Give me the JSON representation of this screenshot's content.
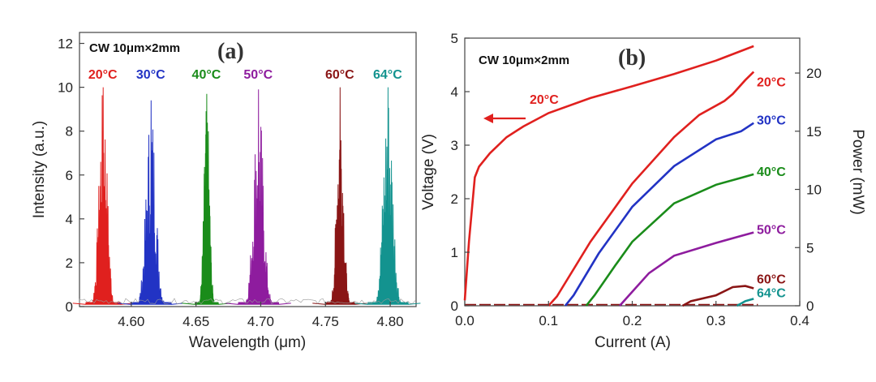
{
  "chart_data": [
    {
      "panel": "(a)",
      "type": "line",
      "annotation": "CW  10μm×2mm",
      "xlabel": "Wavelength (μm)",
      "ylabel": "Intensity (a.u.)",
      "xlim": [
        4.56,
        4.82
      ],
      "ylim": [
        0,
        12.5
      ],
      "xticks": [
        "4.60",
        "4.65",
        "4.70",
        "4.75",
        "4.80"
      ],
      "yticks": [
        "0",
        "2",
        "4",
        "6",
        "8",
        "10",
        "12"
      ],
      "series": [
        {
          "name": "20°C",
          "color": "#e0201e",
          "center": 4.578,
          "peak": 10.0,
          "width": 0.006
        },
        {
          "name": "30°C",
          "color": "#2233c4",
          "center": 4.615,
          "peak": 9.4,
          "width": 0.007
        },
        {
          "name": "40°C",
          "color": "#1a8c1a",
          "center": 4.658,
          "peak": 9.7,
          "width": 0.004
        },
        {
          "name": "50°C",
          "color": "#8e1c9e",
          "center": 4.698,
          "peak": 9.9,
          "width": 0.007
        },
        {
          "name": "60°C",
          "color": "#8a1515",
          "center": 4.761,
          "peak": 10.0,
          "width": 0.005
        },
        {
          "name": "64°C",
          "color": "#13938f",
          "center": 4.798,
          "peak": 10.0,
          "width": 0.007
        }
      ]
    },
    {
      "panel": "(b)",
      "type": "line",
      "annotation": "CW  10μm×2mm",
      "xlabel": "Current (A)",
      "ylabel": "Voltage (V)",
      "y2label": "Power (mW)",
      "xlim": [
        0,
        0.4
      ],
      "ylim": [
        0,
        5
      ],
      "y2lim": [
        0,
        23
      ],
      "xticks": [
        "0.0",
        "0.1",
        "0.2",
        "0.3",
        "0.4"
      ],
      "yticks": [
        "0",
        "1",
        "2",
        "3",
        "4",
        "5"
      ],
      "y2ticks": [
        "0",
        "5",
        "10",
        "15",
        "20"
      ],
      "voltage_series": {
        "name": "20°C",
        "color": "#e0201e",
        "points": [
          [
            0,
            0.1
          ],
          [
            0.005,
            1.2
          ],
          [
            0.012,
            2.4
          ],
          [
            0.017,
            2.6
          ],
          [
            0.03,
            2.85
          ],
          [
            0.05,
            3.15
          ],
          [
            0.07,
            3.35
          ],
          [
            0.1,
            3.6
          ],
          [
            0.15,
            3.88
          ],
          [
            0.2,
            4.1
          ],
          [
            0.25,
            4.33
          ],
          [
            0.3,
            4.58
          ],
          [
            0.345,
            4.85
          ]
        ]
      },
      "power_series": [
        {
          "name": "20°C",
          "color": "#e0201e",
          "points": [
            [
              0.1,
              0
            ],
            [
              0.11,
              0.8
            ],
            [
              0.15,
              5.5
            ],
            [
              0.2,
              10.5
            ],
            [
              0.25,
              14.5
            ],
            [
              0.28,
              16.4
            ],
            [
              0.31,
              17.6
            ],
            [
              0.32,
              18.2
            ],
            [
              0.335,
              19.4
            ],
            [
              0.345,
              20.1
            ]
          ]
        },
        {
          "name": "30°C",
          "color": "#2233c4",
          "points": [
            [
              0.12,
              0
            ],
            [
              0.13,
              0.9
            ],
            [
              0.16,
              4.5
            ],
            [
              0.2,
              8.5
            ],
            [
              0.25,
              12.0
            ],
            [
              0.3,
              14.3
            ],
            [
              0.33,
              15.0
            ],
            [
              0.345,
              15.7
            ]
          ]
        },
        {
          "name": "40°C",
          "color": "#1a8c1a",
          "points": [
            [
              0.145,
              0
            ],
            [
              0.155,
              0.9
            ],
            [
              0.18,
              3.5
            ],
            [
              0.2,
              5.5
            ],
            [
              0.25,
              8.8
            ],
            [
              0.3,
              10.4
            ],
            [
              0.33,
              11.0
            ],
            [
              0.345,
              11.3
            ]
          ]
        },
        {
          "name": "50°C",
          "color": "#8e1c9e",
          "points": [
            [
              0.185,
              0
            ],
            [
              0.195,
              0.8
            ],
            [
              0.22,
              2.8
            ],
            [
              0.25,
              4.3
            ],
            [
              0.3,
              5.4
            ],
            [
              0.33,
              6.0
            ],
            [
              0.345,
              6.3
            ]
          ]
        },
        {
          "name": "60°C",
          "color": "#8a1515",
          "points": [
            [
              0.26,
              0
            ],
            [
              0.27,
              0.4
            ],
            [
              0.3,
              0.9
            ],
            [
              0.32,
              1.6
            ],
            [
              0.335,
              1.7
            ],
            [
              0.345,
              1.5
            ]
          ]
        },
        {
          "name": "64°C",
          "color": "#13938f",
          "points": [
            [
              0.325,
              0
            ],
            [
              0.335,
              0.4
            ],
            [
              0.345,
              0.6
            ]
          ]
        }
      ],
      "arrow_label": "20°C"
    }
  ]
}
